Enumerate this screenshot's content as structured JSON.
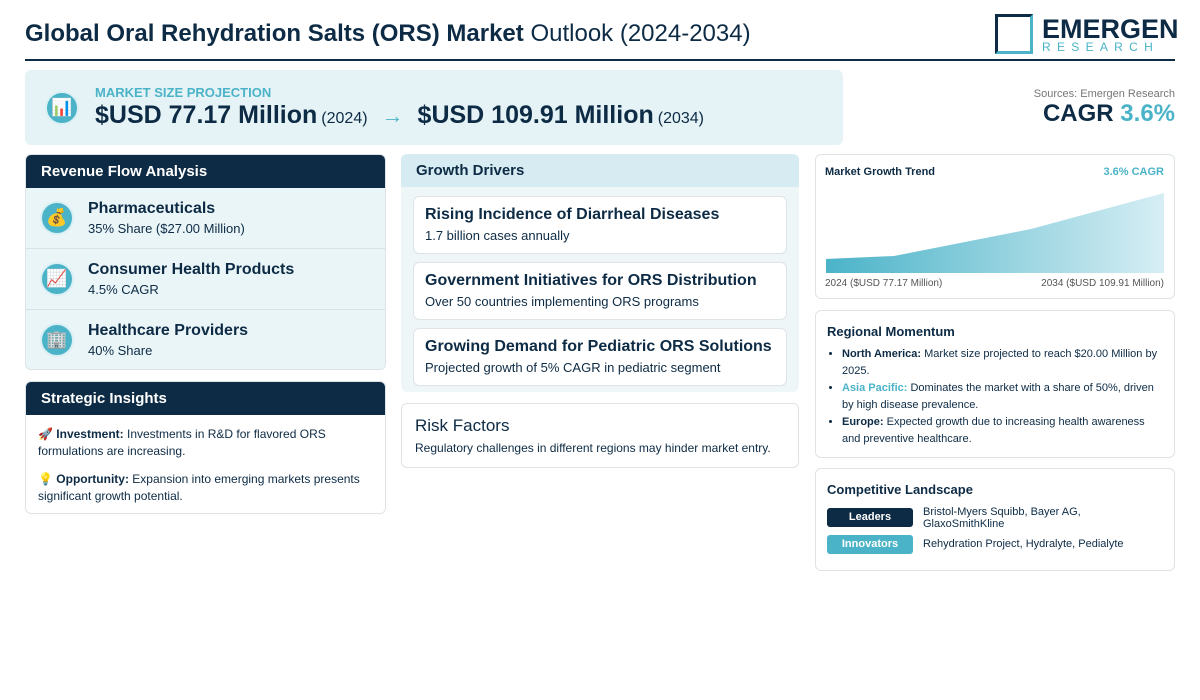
{
  "header": {
    "title_bold": "Global Oral Rehydration Salts (ORS) Market",
    "title_light": "Outlook (2024-2034)",
    "logo_main": "EMERGEN",
    "logo_sub": "RESEARCH"
  },
  "projection": {
    "icon": "📊",
    "label": "MARKET SIZE PROJECTION",
    "start_value": "$USD 77.17 Million",
    "start_year": "(2024)",
    "arrow": "→",
    "end_value": "$USD 109.91 Million",
    "end_year": "(2034)"
  },
  "summary": {
    "sources": "Sources: Emergen Research",
    "cagr_label": "CAGR",
    "cagr_value": "3.6%"
  },
  "revenue": {
    "title": "Revenue Flow Analysis",
    "items": [
      {
        "icon": "💰",
        "name": "Pharmaceuticals",
        "detail": "35% Share ($27.00 Million)"
      },
      {
        "icon": "📈",
        "name": "Consumer Health Products",
        "detail": "4.5% CAGR"
      },
      {
        "icon": "🏢",
        "name": "Healthcare Providers",
        "detail": "40% Share"
      }
    ]
  },
  "insights": {
    "title": "Strategic Insights",
    "items": [
      {
        "icon": "🚀",
        "label": "Investment:",
        "text": "Investments in R&D for flavored ORS formulations are increasing."
      },
      {
        "icon": "💡",
        "label": "Opportunity:",
        "text": "Expansion into emerging markets presents significant growth potential."
      }
    ]
  },
  "drivers": {
    "title": "Growth Drivers",
    "items": [
      {
        "title": "Rising Incidence of Diarrheal Diseases",
        "detail": "1.7 billion cases annually"
      },
      {
        "title": "Government Initiatives for ORS Distribution",
        "detail": "Over 50 countries implementing ORS programs"
      },
      {
        "title": "Growing Demand for Pediatric ORS Solutions",
        "detail": "Projected growth of 5% CAGR in pediatric segment"
      }
    ]
  },
  "risk": {
    "title": "Risk Factors",
    "text": "Regulatory challenges in different regions may hinder market entry."
  },
  "trend": {
    "title": "Market Growth Trend",
    "badge": "3.6% CAGR",
    "start_label": "2024 ($USD 77.17 Million)",
    "end_label": "2034 ($USD 109.91 Million)"
  },
  "regional": {
    "title": "Regional Momentum",
    "items": [
      {
        "region": "North America:",
        "text": "Market size projected to reach $20.00 Million by 2025."
      },
      {
        "region": "Asia Pacific:",
        "text": "Dominates the market with a share of 50%, driven by high disease prevalence."
      },
      {
        "region": "Europe:",
        "text": "Expected growth due to increasing health awareness and preventive healthcare."
      }
    ]
  },
  "competitive": {
    "title": "Competitive Landscape",
    "rows": [
      {
        "tag": "Leaders",
        "text": "Bristol-Myers Squibb, Bayer AG, GlaxoSmithKline"
      },
      {
        "tag": "Innovators",
        "text": "Rehydration Project, Hydralyte, Pedialyte"
      }
    ]
  }
}
